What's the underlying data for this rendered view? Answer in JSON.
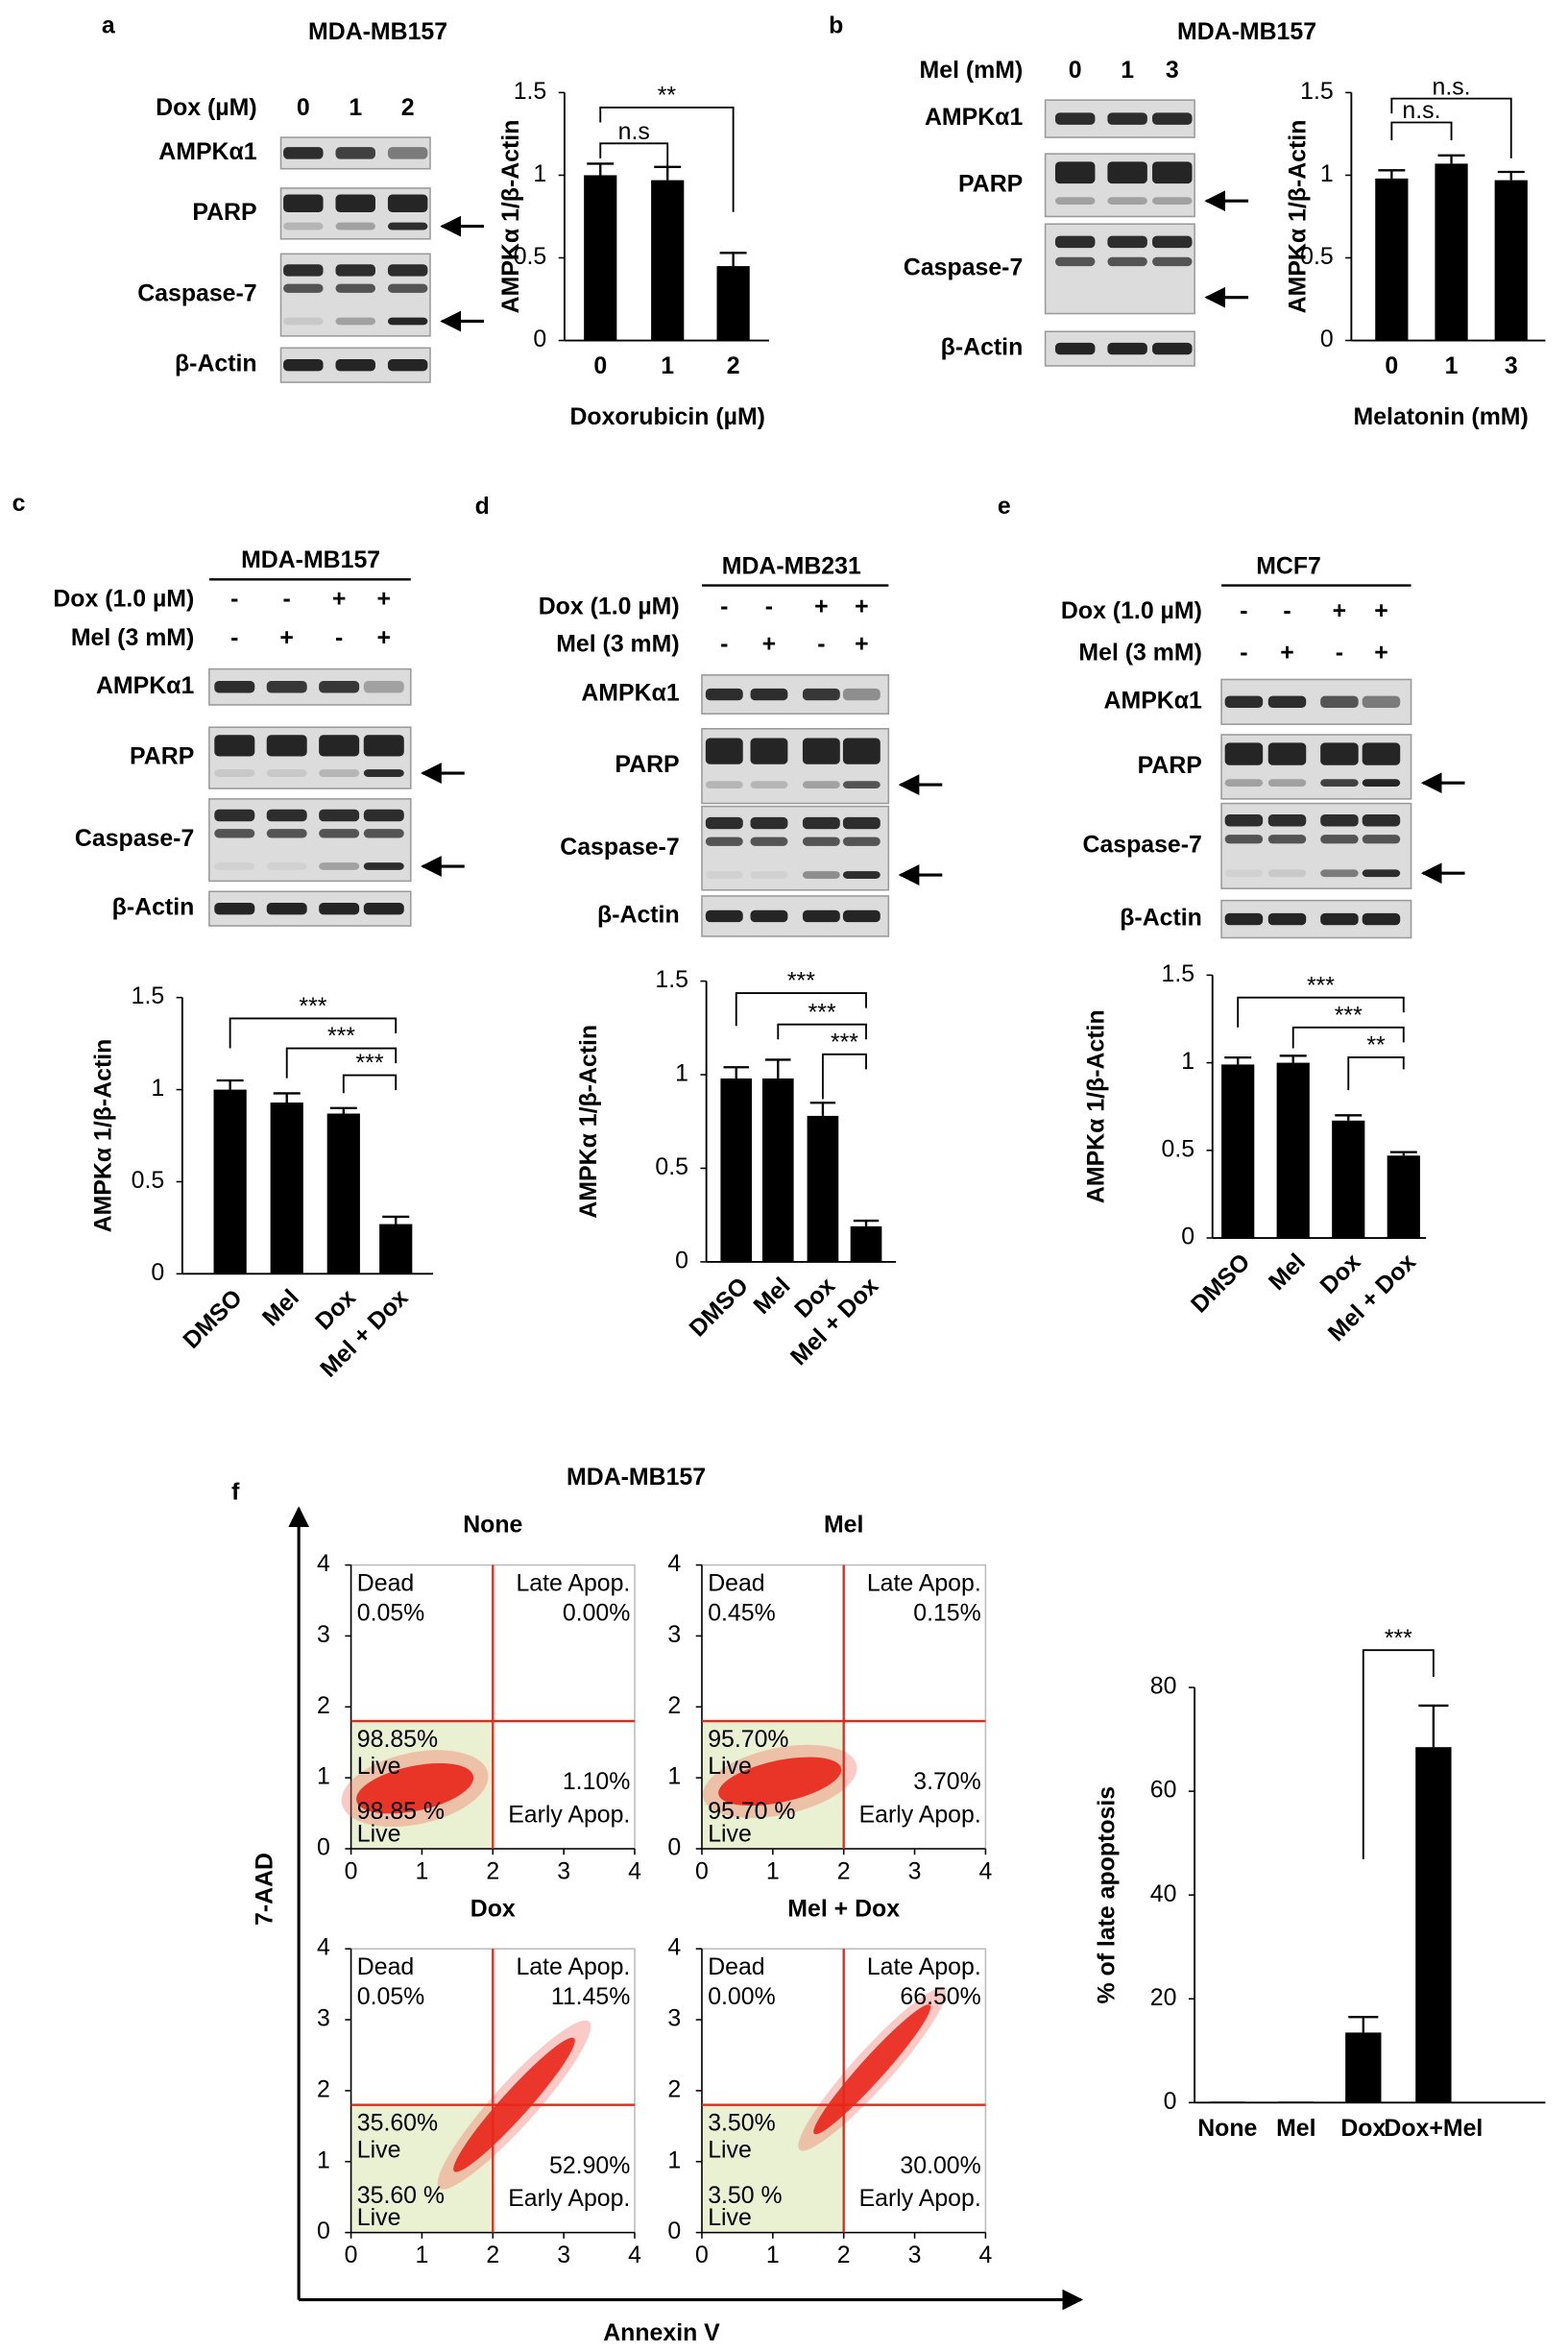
{
  "panel_labels": [
    "a",
    "b",
    "c",
    "d",
    "e",
    "f"
  ],
  "blots": [
    {
      "title": "MDA-MB157",
      "treatments": [
        {
          "label": "Dox (µM)",
          "lanes": [
            "0",
            "1",
            "2"
          ]
        }
      ],
      "bands": [
        "AMPKα1",
        "PARP",
        "Caspase-7",
        "β-Actin"
      ]
    },
    {
      "title": "MDA-MB157",
      "treatments": [
        {
          "label": "Mel (mM)",
          "lanes": [
            "0",
            "1",
            "3"
          ]
        }
      ],
      "bands": [
        "AMPKα1",
        "PARP",
        "Caspase-7",
        "β-Actin"
      ]
    },
    {
      "title": "MDA-MB157",
      "treatments": [
        {
          "label": "Dox (1.0 µM)",
          "lanes": [
            "-",
            "-",
            "+",
            "+"
          ]
        },
        {
          "label": "Mel (3 mM)",
          "lanes": [
            "-",
            "+",
            "-",
            "+"
          ]
        }
      ],
      "bands": [
        "AMPKα1",
        "PARP",
        "Caspase-7",
        "β-Actin"
      ]
    },
    {
      "title": "MDA-MB231",
      "treatments": [
        {
          "label": "Dox (1.0 µM)",
          "lanes": [
            "-",
            "-",
            "+",
            "+"
          ]
        },
        {
          "label": "Mel (3 mM)",
          "lanes": [
            "-",
            "+",
            "-",
            "+"
          ]
        }
      ],
      "bands": [
        "AMPKα1",
        "PARP",
        "Caspase-7",
        "β-Actin"
      ]
    },
    {
      "title": "MCF7",
      "treatments": [
        {
          "label": "Dox (1.0 µM)",
          "lanes": [
            "-",
            "-",
            "+",
            "+"
          ]
        },
        {
          "label": "Mel (3 mM)",
          "lanes": [
            "-",
            "+",
            "-",
            "+"
          ]
        }
      ],
      "bands": [
        "AMPKα1",
        "PARP",
        "Caspase-7",
        "β-Actin"
      ]
    }
  ],
  "flow_title": "MDA-MB157",
  "flow_y_label": "7-AAD",
  "flow_x_label": "Annexin V",
  "chart_data": [
    {
      "type": "bar",
      "categories": [
        "0",
        "1",
        "2"
      ],
      "values": [
        1.0,
        0.97,
        0.45
      ],
      "errors": [
        0.07,
        0.08,
        0.08
      ],
      "color": "#000000",
      "ylim": [
        0,
        1.5
      ],
      "yticks": [
        0,
        0.5,
        1,
        1.5
      ],
      "y_label": "AMPKα 1/β-Actin",
      "x_label": "Doxorubicin (µM)",
      "significance": [
        "n.s",
        "**"
      ]
    },
    {
      "type": "bar",
      "categories": [
        "0",
        "1",
        "3"
      ],
      "values": [
        0.98,
        1.07,
        0.97
      ],
      "errors": [
        0.05,
        0.05,
        0.05
      ],
      "color": "#000000",
      "ylim": [
        0,
        1.5
      ],
      "yticks": [
        0,
        0.5,
        1,
        1.5
      ],
      "y_label": "AMPKα 1/β-Actin",
      "x_label": "Melatonin (mM)",
      "significance": [
        "n.s.",
        "n.s."
      ]
    },
    {
      "type": "bar",
      "categories": [
        "DMSO",
        "Mel",
        "Dox",
        "Mel + Dox"
      ],
      "values": [
        1.0,
        0.93,
        0.87,
        0.27
      ],
      "errors": [
        0.05,
        0.05,
        0.03,
        0.04
      ],
      "color": "#000000",
      "ylim": [
        0,
        1.5
      ],
      "yticks": [
        0,
        0.5,
        1,
        1.5
      ],
      "y_label": "AMPKα 1/β-Actin",
      "significance": [
        "***",
        "***",
        "***"
      ]
    },
    {
      "type": "bar",
      "categories": [
        "DMSO",
        "Mel",
        "Dox",
        "Mel + Dox"
      ],
      "values": [
        0.98,
        0.98,
        0.78,
        0.19
      ],
      "errors": [
        0.06,
        0.1,
        0.07,
        0.03
      ],
      "color": "#000000",
      "ylim": [
        0,
        1.5
      ],
      "yticks": [
        0,
        0.5,
        1,
        1.5
      ],
      "y_label": "AMPKα 1/β-Actin",
      "significance": [
        "***",
        "***",
        "***"
      ]
    },
    {
      "type": "bar",
      "categories": [
        "DMSO",
        "Mel",
        "Dox",
        "Mel + Dox"
      ],
      "values": [
        0.99,
        1.0,
        0.67,
        0.47
      ],
      "errors": [
        0.04,
        0.04,
        0.03,
        0.02
      ],
      "color": "#000000",
      "ylim": [
        0,
        1.5
      ],
      "yticks": [
        0,
        0.5,
        1,
        1.5
      ],
      "y_label": "AMPKα 1/β-Actin",
      "significance": [
        "***",
        "***",
        "**"
      ]
    },
    {
      "type": "scatter",
      "title": "None",
      "xlim": [
        0,
        4
      ],
      "ylim": [
        0,
        4
      ],
      "xticks": [
        0,
        1,
        2,
        3,
        4
      ],
      "yticks": [
        0,
        1,
        2,
        3,
        4
      ],
      "gates": {
        "x": 2,
        "y": 1.8
      },
      "quadrants": {
        "dead": "Dead",
        "dead_pct": "0.05%",
        "late": "Late Apop.",
        "late_pct": "0.00%",
        "live_pct": "98.85%",
        "live": "Live",
        "early_pct": "1.10%",
        "early": "Early Apop.",
        "inset_pct": "98.85 %",
        "inset": "Live"
      }
    },
    {
      "type": "scatter",
      "title": "Mel",
      "xlim": [
        0,
        4
      ],
      "ylim": [
        0,
        4
      ],
      "xticks": [
        0,
        1,
        2,
        3,
        4
      ],
      "yticks": [
        0,
        1,
        2,
        3,
        4
      ],
      "gates": {
        "x": 2,
        "y": 1.8
      },
      "quadrants": {
        "dead": "Dead",
        "dead_pct": "0.45%",
        "late": "Late Apop.",
        "late_pct": "0.15%",
        "live_pct": "95.70%",
        "live": "Live",
        "early_pct": "3.70%",
        "early": "Early Apop.",
        "inset_pct": "95.70 %",
        "inset": "Live"
      }
    },
    {
      "type": "scatter",
      "title": "Dox",
      "xlim": [
        0,
        4
      ],
      "ylim": [
        0,
        4
      ],
      "xticks": [
        0,
        1,
        2,
        3,
        4
      ],
      "yticks": [
        0,
        1,
        2,
        3,
        4
      ],
      "gates": {
        "x": 2,
        "y": 1.8
      },
      "quadrants": {
        "dead": "Dead",
        "dead_pct": "0.05%",
        "late": "Late Apop.",
        "late_pct": "11.45%",
        "live_pct": "35.60%",
        "live": "Live",
        "early_pct": "52.90%",
        "early": "Early Apop.",
        "inset_pct": "35.60 %",
        "inset": "Live"
      }
    },
    {
      "type": "scatter",
      "title": "Mel + Dox",
      "xlim": [
        0,
        4
      ],
      "ylim": [
        0,
        4
      ],
      "xticks": [
        0,
        1,
        2,
        3,
        4
      ],
      "yticks": [
        0,
        1,
        2,
        3,
        4
      ],
      "gates": {
        "x": 2,
        "y": 1.8
      },
      "quadrants": {
        "dead": "Dead",
        "dead_pct": "0.00%",
        "late": "Late Apop.",
        "late_pct": "66.50%",
        "live_pct": "3.50%",
        "live": "Live",
        "early_pct": "30.00%",
        "early": "Early Apop.",
        "inset_pct": "3.50 %",
        "inset": "Live"
      }
    },
    {
      "type": "bar",
      "categories": [
        "None",
        "Mel",
        "Dox",
        "Dox+Mel"
      ],
      "values": [
        0.2,
        0.2,
        13.5,
        68.5
      ],
      "errors": [
        null,
        null,
        3,
        8
      ],
      "color": "#000000",
      "ylim": [
        0,
        80
      ],
      "yticks": [
        0,
        20,
        40,
        60,
        80
      ],
      "y_label": "% of late apoptosis",
      "significance": [
        "***"
      ]
    }
  ]
}
